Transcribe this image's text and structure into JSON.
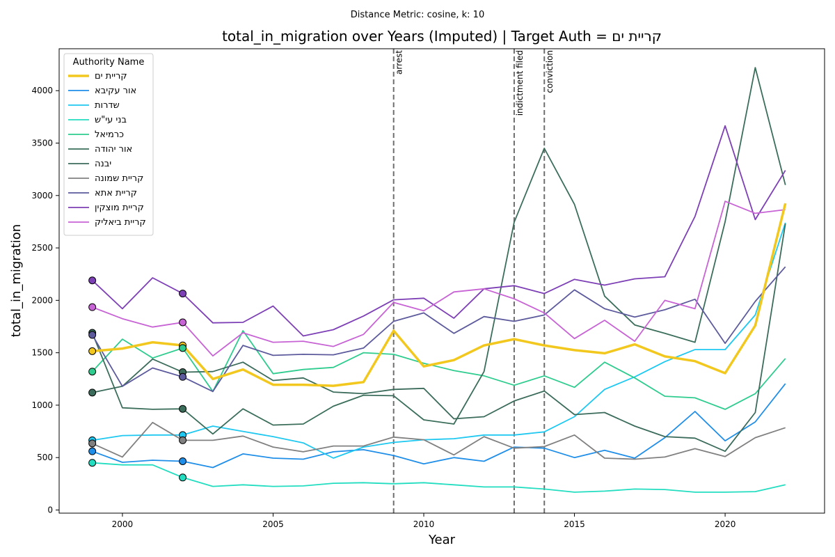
{
  "suptitle": "Distance Metric: cosine, k: 10",
  "chart_data": {
    "type": "line",
    "title": "total_in_migration over Years (Imputed) | Target Auth = קריית ים",
    "xlabel": "Year",
    "ylabel": "total_in_migration",
    "xlim": [
      1997.9,
      2023.3
    ],
    "ylim": [
      -30,
      4400
    ],
    "xticks": [
      2000,
      2005,
      2010,
      2015,
      2020
    ],
    "yticks": [
      0,
      500,
      1000,
      1500,
      2000,
      2500,
      3000,
      3500,
      4000
    ],
    "grid": false,
    "legend": {
      "title": "Authority Name",
      "placement": "upper-left"
    },
    "events": [
      {
        "x": 2009,
        "label": "arrest"
      },
      {
        "x": 2013,
        "label": "indictment filed"
      },
      {
        "x": 2014,
        "label": "conviction"
      }
    ],
    "x": [
      1999,
      2000,
      2001,
      2002,
      2003,
      2004,
      2005,
      2006,
      2007,
      2008,
      2009,
      2010,
      2011,
      2012,
      2013,
      2014,
      2015,
      2016,
      2017,
      2018,
      2019,
      2020,
      2021,
      2022
    ],
    "imputed_markers": {
      "years": [
        1999,
        2002
      ]
    },
    "series": [
      {
        "name": "קריית ים",
        "color": "#f2c81e",
        "target": true,
        "values": [
          1515,
          1540,
          1600,
          1570,
          1250,
          1340,
          1195,
          1195,
          1185,
          1220,
          1710,
          1370,
          1430,
          1570,
          1630,
          1570,
          1525,
          1495,
          1580,
          1465,
          1420,
          1305,
          1760,
          2925
        ]
      },
      {
        "name": "אור עקיבא",
        "color": "#1f8ee8",
        "values": [
          560,
          455,
          475,
          465,
          405,
          535,
          495,
          485,
          555,
          575,
          520,
          440,
          500,
          465,
          600,
          590,
          500,
          570,
          495,
          690,
          940,
          660,
          840,
          1205
        ]
      },
      {
        "name": "שדרות",
        "color": "#1ec8f0",
        "values": [
          665,
          710,
          715,
          715,
          800,
          750,
          700,
          640,
          495,
          600,
          645,
          670,
          680,
          715,
          715,
          745,
          890,
          1150,
          1270,
          1415,
          1530,
          1530,
          1860,
          2740
        ]
      },
      {
        "name": "בני עי\"ש",
        "color": "#22ddc0",
        "values": [
          450,
          430,
          430,
          310,
          225,
          240,
          225,
          230,
          255,
          260,
          250,
          260,
          240,
          220,
          220,
          200,
          170,
          180,
          200,
          195,
          170,
          170,
          175,
          240
        ]
      },
      {
        "name": "כרמיאל",
        "color": "#2ecc8e",
        "values": [
          1320,
          1630,
          1450,
          1545,
          1130,
          1710,
          1300,
          1340,
          1360,
          1500,
          1485,
          1400,
          1330,
          1280,
          1190,
          1280,
          1170,
          1410,
          1260,
          1085,
          1070,
          960,
          1110,
          1445
        ]
      },
      {
        "name": "אור יהודה",
        "color": "#3a6e5a",
        "values": [
          1690,
          975,
          960,
          965,
          725,
          965,
          810,
          820,
          990,
          1095,
          1090,
          860,
          820,
          1320,
          2745,
          3450,
          2915,
          2040,
          1765,
          1685,
          1600,
          2750,
          4220,
          3100
        ]
      },
      {
        "name": "יבנה",
        "color": "#3b6b5b",
        "values": [
          1120,
          1180,
          1440,
          1315,
          1320,
          1410,
          1235,
          1260,
          1125,
          1110,
          1150,
          1160,
          870,
          890,
          1040,
          1135,
          910,
          930,
          800,
          700,
          685,
          560,
          930,
          2730
        ]
      },
      {
        "name": "קריית שמונה",
        "color": "#808080",
        "values": [
          635,
          505,
          835,
          665,
          665,
          705,
          600,
          555,
          610,
          610,
          695,
          670,
          525,
          700,
          590,
          605,
          715,
          495,
          485,
          505,
          585,
          510,
          690,
          785
        ]
      },
      {
        "name": "קריית אתא",
        "color": "#5c5a9c",
        "values": [
          1670,
          1180,
          1355,
          1270,
          1130,
          1570,
          1475,
          1485,
          1480,
          1545,
          1800,
          1880,
          1685,
          1845,
          1800,
          1860,
          2100,
          1920,
          1840,
          1910,
          2010,
          1590,
          1990,
          2320
        ]
      },
      {
        "name": "קריית מוצקין",
        "color": "#7d3fb5",
        "values": [
          2190,
          1920,
          2215,
          2065,
          1785,
          1790,
          1945,
          1660,
          1720,
          1850,
          2005,
          2020,
          1830,
          2110,
          2140,
          2065,
          2200,
          2145,
          2205,
          2225,
          2800,
          3665,
          2770,
          3240
        ]
      },
      {
        "name": "קריית ביאליק",
        "color": "#c763d4",
        "values": [
          1935,
          1825,
          1745,
          1790,
          1470,
          1690,
          1600,
          1610,
          1560,
          1675,
          1980,
          1900,
          2080,
          2110,
          2015,
          1880,
          1635,
          1810,
          1610,
          2000,
          1920,
          2945,
          2830,
          2865
        ]
      }
    ]
  }
}
